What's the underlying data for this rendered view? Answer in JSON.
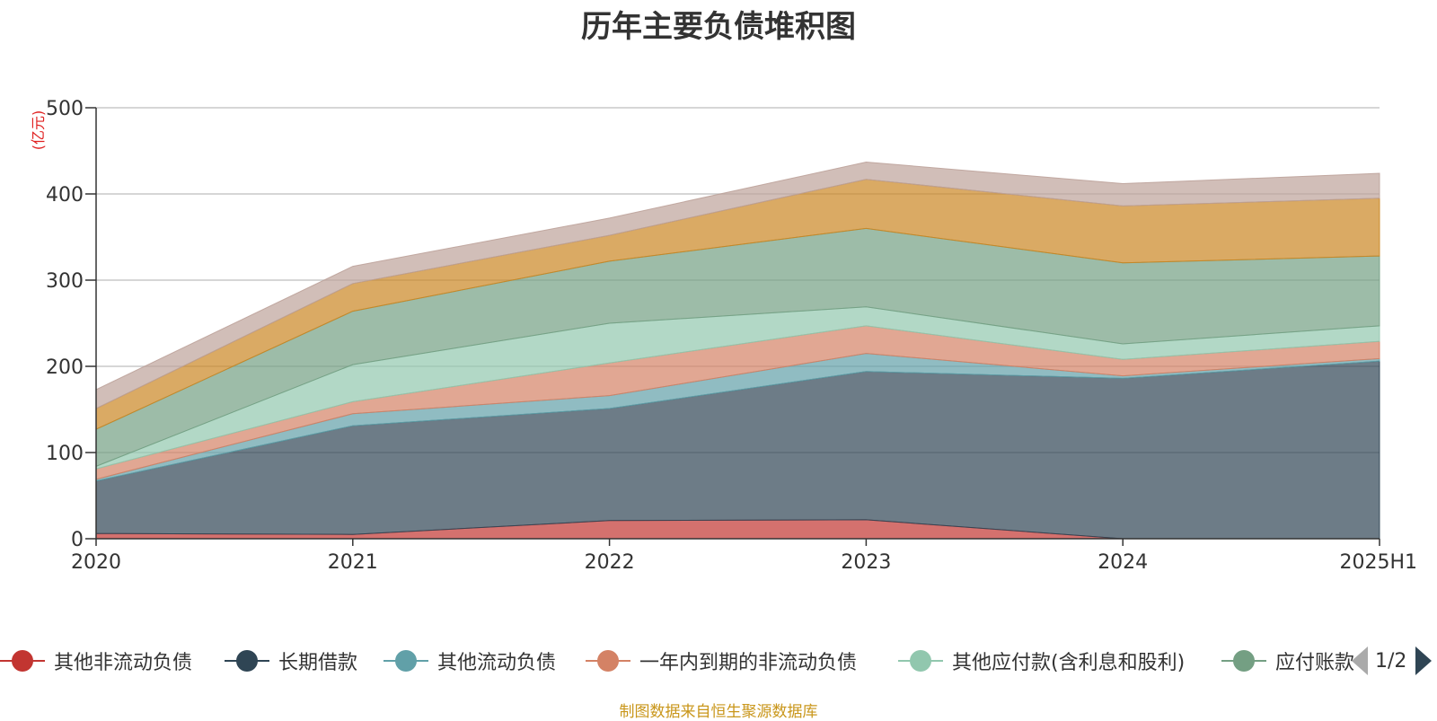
{
  "chart_data": {
    "type": "area",
    "stacked": true,
    "title": "历年主要负债堆积图",
    "unit_label": "(亿元)",
    "x": [
      "2020",
      "2021",
      "2022",
      "2023",
      "2024",
      "2025H1"
    ],
    "ylim": [
      0,
      500
    ],
    "yticks": [
      0,
      100,
      200,
      300,
      400,
      500
    ],
    "grid": true,
    "series": [
      {
        "name": "其他非流动负债",
        "color": "#c23531",
        "values": [
          6,
          5,
          21,
          22,
          0,
          0
        ]
      },
      {
        "name": "长期借款",
        "color": "#2f4554",
        "values": [
          61,
          126,
          130,
          172,
          186,
          206
        ]
      },
      {
        "name": "其他流动负债",
        "color": "#61a0a8",
        "values": [
          2,
          14,
          15,
          21,
          3,
          3
        ]
      },
      {
        "name": "一年内到期的非流动负债",
        "color": "#d48265",
        "values": [
          12,
          14,
          38,
          32,
          19,
          20
        ]
      },
      {
        "name": "其他应付款(含利息和股利)",
        "color": "#91c7ae",
        "values": [
          3,
          43,
          46,
          22,
          18,
          18
        ]
      },
      {
        "name": "应付账款",
        "color": "#749f83",
        "values": [
          43,
          62,
          72,
          91,
          94,
          81
        ]
      },
      {
        "name": "",
        "color": "#ca8622",
        "values": [
          24,
          32,
          30,
          57,
          66,
          67
        ]
      },
      {
        "name": "",
        "color": "#bda29a",
        "values": [
          22,
          20,
          20,
          20,
          26,
          29
        ]
      }
    ],
    "legend_position": "bottom",
    "legend_page": "1/2",
    "source_note": "制图数据来自恒生聚源数据库"
  }
}
